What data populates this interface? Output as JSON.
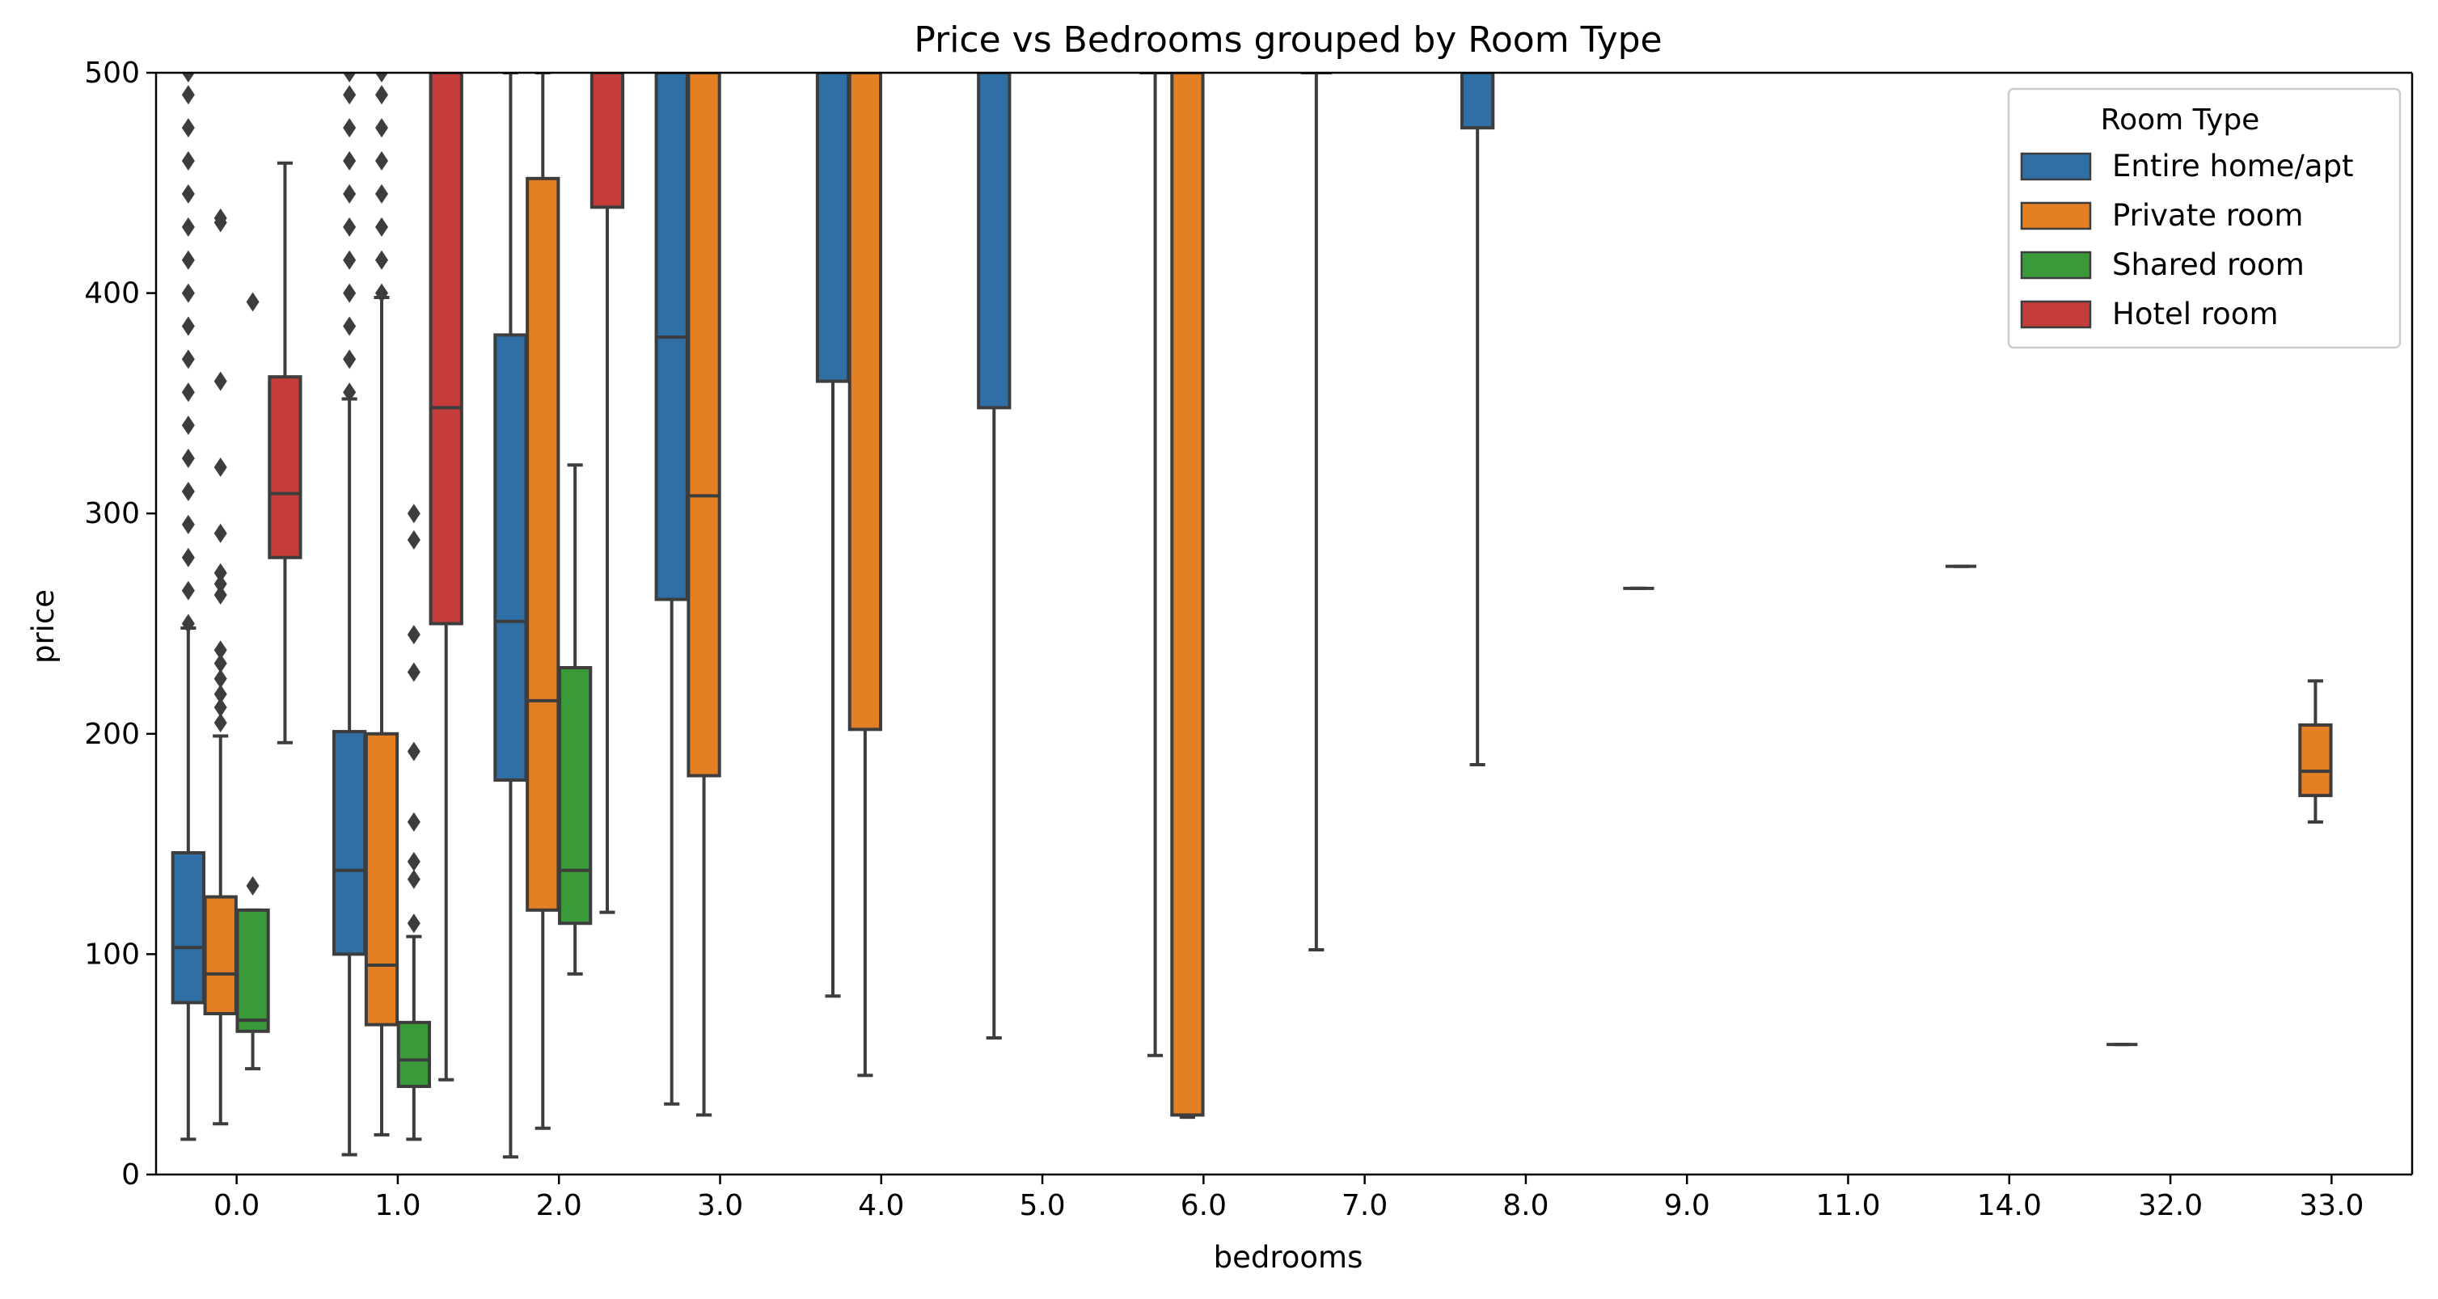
{
  "chart_data": {
    "type": "box",
    "title": "Price vs Bedrooms grouped by Room Type",
    "xlabel": "bedrooms",
    "ylabel": "price",
    "ylim": [
      0,
      500
    ],
    "yticks": [
      0,
      100,
      200,
      300,
      400,
      500
    ],
    "categories": [
      "0.0",
      "1.0",
      "2.0",
      "3.0",
      "4.0",
      "5.0",
      "6.0",
      "7.0",
      "8.0",
      "9.0",
      "11.0",
      "14.0",
      "32.0",
      "33.0"
    ],
    "legend": {
      "title": "Room Type",
      "position": "top-right"
    },
    "grid": false,
    "series": [
      {
        "name": "Entire home/apt",
        "color": "#2f6fa5",
        "boxes": [
          {
            "category": "0.0",
            "whisker_low": 16,
            "q1": 78,
            "median": 103,
            "q3": 146,
            "whisker_high": 248,
            "outliers": [
              250,
              265,
              280,
              295,
              310,
              325,
              340,
              355,
              370,
              385,
              400,
              415,
              430,
              445,
              460,
              475,
              490,
              500
            ]
          },
          {
            "category": "1.0",
            "whisker_low": 9,
            "q1": 100,
            "median": 138,
            "q3": 201,
            "whisker_high": 352,
            "outliers": [
              355,
              370,
              385,
              400,
              415,
              430,
              445,
              460,
              475,
              490,
              500
            ]
          },
          {
            "category": "2.0",
            "whisker_low": 8,
            "q1": 179,
            "median": 251,
            "q3": 381,
            "whisker_high": 500,
            "outliers": []
          },
          {
            "category": "3.0",
            "whisker_low": 32,
            "q1": 261,
            "median": 380,
            "q3": 500,
            "whisker_high": 500,
            "outliers": []
          },
          {
            "category": "4.0",
            "whisker_low": 81,
            "q1": 360,
            "median": 500,
            "q3": 500,
            "whisker_high": 500,
            "outliers": []
          },
          {
            "category": "5.0",
            "whisker_low": 62,
            "q1": 348,
            "median": 500,
            "q3": 500,
            "whisker_high": 500,
            "outliers": []
          },
          {
            "category": "6.0",
            "whisker_low": 54,
            "q1": 500,
            "median": 500,
            "q3": 500,
            "whisker_high": 500,
            "outliers": []
          },
          {
            "category": "7.0",
            "whisker_low": 102,
            "q1": 500,
            "median": 500,
            "q3": 500,
            "whisker_high": 500,
            "outliers": []
          },
          {
            "category": "8.0",
            "whisker_low": 186,
            "q1": 475,
            "median": 500,
            "q3": 500,
            "whisker_high": 500,
            "outliers": []
          },
          {
            "category": "9.0",
            "whisker_low": 266,
            "q1": 266,
            "median": 266,
            "q3": 266,
            "whisker_high": 266,
            "outliers": []
          },
          {
            "category": "14.0",
            "whisker_low": 276,
            "q1": 276,
            "median": 276,
            "q3": 276,
            "whisker_high": 276,
            "outliers": []
          },
          {
            "category": "32.0",
            "whisker_low": 59,
            "q1": 59,
            "median": 59,
            "q3": 59,
            "whisker_high": 59,
            "outliers": []
          }
        ]
      },
      {
        "name": "Private room",
        "color": "#e47f23",
        "boxes": [
          {
            "category": "0.0",
            "whisker_low": 23,
            "q1": 73,
            "median": 91,
            "q3": 126,
            "whisker_high": 199,
            "outliers": [
              205,
              212,
              218,
              225,
              232,
              238,
              263,
              268,
              273,
              291,
              321,
              360,
              432,
              434
            ]
          },
          {
            "category": "1.0",
            "whisker_low": 18,
            "q1": 68,
            "median": 95,
            "q3": 200,
            "whisker_high": 398,
            "outliers": [
              400,
              415,
              430,
              445,
              460,
              475,
              490,
              500
            ]
          },
          {
            "category": "2.0",
            "whisker_low": 21,
            "q1": 120,
            "median": 215,
            "q3": 452,
            "whisker_high": 500,
            "outliers": []
          },
          {
            "category": "3.0",
            "whisker_low": 27,
            "q1": 181,
            "median": 308,
            "q3": 500,
            "whisker_high": 500,
            "outliers": []
          },
          {
            "category": "4.0",
            "whisker_low": 45,
            "q1": 202,
            "median": 500,
            "q3": 500,
            "whisker_high": 500,
            "outliers": []
          },
          {
            "category": "6.0",
            "whisker_low": 26,
            "q1": 27,
            "median": 500,
            "q3": 500,
            "whisker_high": 500,
            "outliers": []
          },
          {
            "category": "33.0",
            "whisker_low": 160,
            "q1": 172,
            "median": 183,
            "q3": 204,
            "whisker_high": 224,
            "outliers": []
          }
        ]
      },
      {
        "name": "Shared room",
        "color": "#3a9a3a",
        "boxes": [
          {
            "category": "0.0",
            "whisker_low": 48,
            "q1": 65,
            "median": 70,
            "q3": 120,
            "whisker_high": 120,
            "outliers": [
              131,
              396
            ]
          },
          {
            "category": "1.0",
            "whisker_low": 16,
            "q1": 40,
            "median": 52,
            "q3": 69,
            "whisker_high": 108,
            "outliers": [
              114,
              134,
              142,
              160,
              192,
              228,
              245,
              288,
              300
            ]
          },
          {
            "category": "2.0",
            "whisker_low": 91,
            "q1": 114,
            "median": 138,
            "q3": 230,
            "whisker_high": 322,
            "outliers": []
          }
        ]
      },
      {
        "name": "Hotel room",
        "color": "#c43d3b",
        "boxes": [
          {
            "category": "0.0",
            "whisker_low": 196,
            "q1": 280,
            "median": 309,
            "q3": 362,
            "whisker_high": 459,
            "outliers": []
          },
          {
            "category": "1.0",
            "whisker_low": 43,
            "q1": 250,
            "median": 348,
            "q3": 500,
            "whisker_high": 500,
            "outliers": []
          },
          {
            "category": "2.0",
            "whisker_low": 119,
            "q1": 439,
            "median": 500,
            "q3": 500,
            "whisker_high": 500,
            "outliers": []
          }
        ]
      }
    ]
  }
}
